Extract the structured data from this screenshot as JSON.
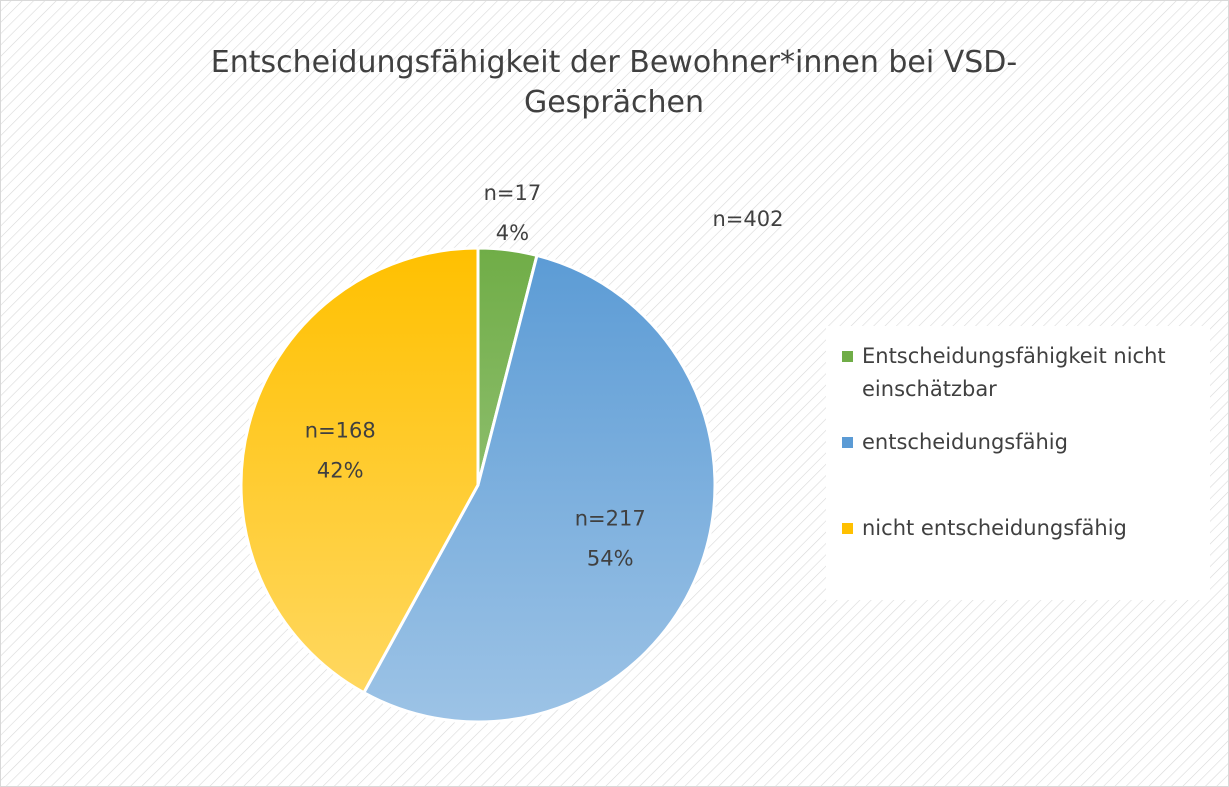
{
  "chart_data": {
    "type": "pie",
    "title_lines": [
      "Entscheidungsfähigkeit der Bewohner*innen bei VSD-",
      "Gesprächen"
    ],
    "annotation": "n=402",
    "categories": [
      "Entscheidungsfähigkeit nicht einschätzbar",
      "entscheidungsfähig",
      "nicht entscheidungsfähig"
    ],
    "values": [
      4,
      54,
      42
    ],
    "value_labels": [
      "4%",
      "54%",
      "42%"
    ],
    "n_labels": [
      "n=17",
      "n=217",
      "n=168"
    ],
    "colors": [
      "#70ad47",
      "#5b9bd5",
      "#ffc000"
    ],
    "legend": "right"
  }
}
